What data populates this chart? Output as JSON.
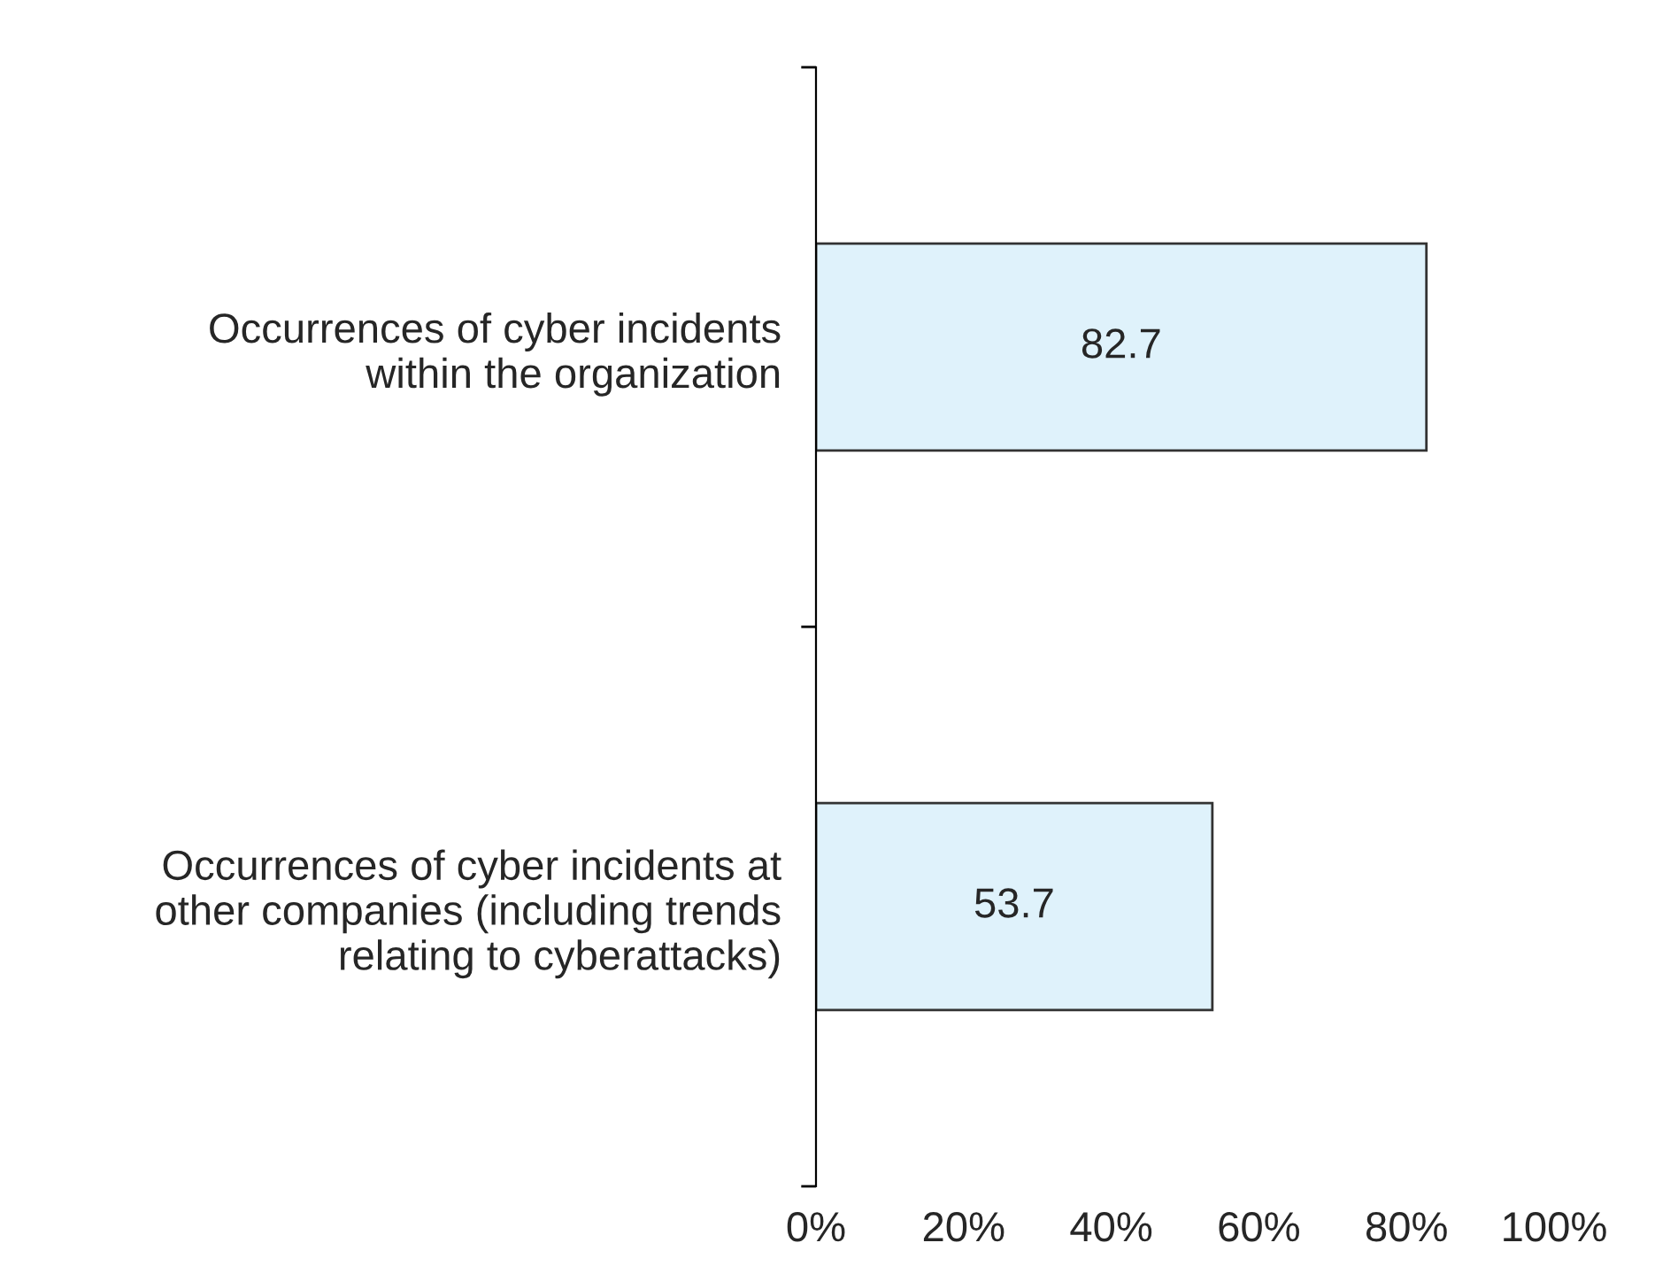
{
  "chart_data": {
    "type": "bar",
    "orientation": "horizontal",
    "categories": [
      "Occurrences of cyber incidents\nwithin the organization",
      "Occurrences of cyber incidents at\nother companies (including trends\nrelating to cyberattacks)"
    ],
    "values": [
      82.7,
      53.7
    ],
    "color": "#dff2fb",
    "data_labels": true,
    "xlim": [
      0,
      100
    ],
    "xticks": [
      {
        "value": 0,
        "label": "0%"
      },
      {
        "value": 20,
        "label": "20%"
      },
      {
        "value": 40,
        "label": "40%"
      },
      {
        "value": 60,
        "label": "60%"
      },
      {
        "value": 80,
        "label": "80%"
      },
      {
        "value": 100,
        "label": "100%"
      }
    ],
    "grid": false,
    "legend": false
  }
}
